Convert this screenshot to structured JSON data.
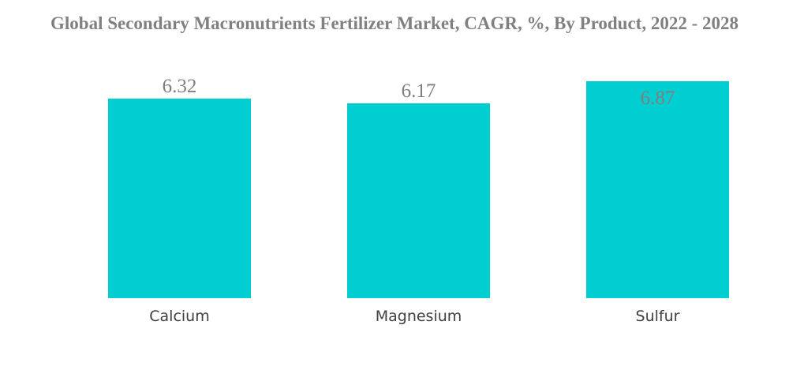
{
  "chart_data": {
    "type": "bar",
    "title": "Global Secondary Macronutrients Fertilizer Market, CAGR, %, By Product, 2022 - 2028",
    "categories": [
      "Calcium",
      "Magnesium",
      "Sulfur"
    ],
    "values": [
      6.32,
      6.17,
      6.87
    ],
    "value_labels": [
      "6.32",
      "6.17",
      "6.87"
    ],
    "xlabel": "",
    "ylabel": "",
    "ylim": [
      0,
      6.87
    ],
    "grid": false,
    "legend": "none",
    "colors": {
      "bar": "#00CED1",
      "title": "#808080",
      "value_label": "#7F7F7F",
      "category_label": "#404040"
    }
  }
}
